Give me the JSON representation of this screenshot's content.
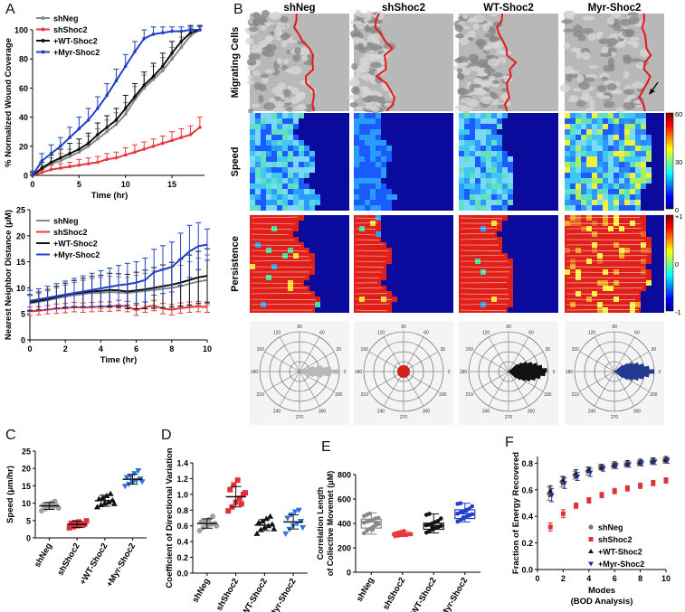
{
  "panel_letters": [
    "A",
    "B",
    "C",
    "D",
    "E",
    "F"
  ],
  "colors": {
    "shNeg": "#888888",
    "shShoc2": "#e8383d",
    "WT": "#111111",
    "Myr": "#2040c8",
    "Myr_box": "#1c3fd0",
    "Myr_tri": "#2f6fd8",
    "shNeg_dots": "#a0a0a0",
    "shShoc2_dots": "#e03038",
    "F_shNeg": "#777777",
    "F_WT": "#111111",
    "F_Myr": "#23318a",
    "rose_shNeg": "#b8b8b8",
    "rose_shShoc2": "#d02020",
    "rose_WT": "#111111",
    "rose_Myr": "#203a90",
    "boundary": "#e8181a"
  },
  "panelB": {
    "columns": [
      "shNeg",
      "shShoc2",
      "WT-Shoc2",
      "Myr-Shoc2"
    ],
    "rows": [
      "Migrating Cells",
      "Speed",
      "Persistence"
    ],
    "speed_colorbar": {
      "ticks": [
        "60",
        "30",
        "0"
      ]
    },
    "persistence_colorbar": {
      "ticks": [
        "+1",
        "0",
        "-1"
      ]
    },
    "rose_labels": [
      "90",
      "60",
      "30",
      "0",
      "330",
      "300",
      "270",
      "240",
      "210",
      "180",
      "150",
      "120"
    ]
  },
  "chart_data": [
    {
      "id": "A_top",
      "type": "line",
      "title": "",
      "xlabel": "Time (hr)",
      "ylabel": "% Normalized Wound Coverage",
      "xlim": [
        0,
        18.5
      ],
      "ylim": [
        0,
        100
      ],
      "xticks": [
        0,
        5,
        10,
        15
      ],
      "yticks": [
        0,
        20,
        40,
        60,
        80,
        100
      ],
      "legend": [
        "shNeg",
        "shShoc2",
        "+WT-Shoc2",
        "+Myr-Shoc2"
      ],
      "x": [
        0,
        1,
        2,
        3,
        4,
        5,
        6,
        7,
        8,
        9,
        10,
        11,
        12,
        13,
        14,
        15,
        16,
        17,
        18
      ],
      "series": [
        {
          "name": "shNeg",
          "values": [
            0,
            4,
            8,
            10,
            13,
            16,
            20,
            25,
            30,
            35,
            42,
            52,
            60,
            66,
            72,
            80,
            88,
            96,
            100
          ],
          "err": [
            2,
            3,
            4,
            5,
            5,
            6,
            7,
            7,
            8,
            8,
            8,
            9,
            9,
            9,
            9,
            8,
            7,
            5,
            3
          ]
        },
        {
          "name": "shShoc2",
          "values": [
            0,
            2,
            4,
            5,
            6,
            7,
            8,
            9,
            11,
            12,
            14,
            16,
            18,
            20,
            22,
            24,
            26,
            28,
            33
          ],
          "err": [
            1,
            2,
            3,
            3,
            3,
            4,
            4,
            4,
            4,
            4,
            5,
            5,
            5,
            5,
            5,
            6,
            6,
            6,
            7
          ]
        },
        {
          "name": "+WT-Shoc2",
          "values": [
            0,
            5,
            9,
            12,
            15,
            18,
            22,
            28,
            33,
            38,
            46,
            54,
            62,
            68,
            75,
            84,
            92,
            98,
            100
          ],
          "err": [
            2,
            4,
            5,
            6,
            7,
            7,
            7,
            8,
            8,
            8,
            9,
            9,
            9,
            9,
            9,
            8,
            7,
            5,
            3
          ]
        },
        {
          "name": "+Myr-Shoc2",
          "values": [
            0,
            10,
            15,
            20,
            26,
            32,
            38,
            46,
            55,
            65,
            75,
            85,
            94,
            97,
            98,
            99,
            99,
            100,
            100
          ],
          "err": [
            3,
            5,
            6,
            6,
            7,
            8,
            8,
            8,
            8,
            8,
            8,
            7,
            6,
            5,
            4,
            3,
            3,
            2,
            2
          ]
        }
      ]
    },
    {
      "id": "A_bottom",
      "type": "line",
      "title": "",
      "xlabel": "Time (hr)",
      "ylabel": "Nearest Neighbor Distance (μM)",
      "xlim": [
        0,
        10
      ],
      "ylim": [
        0,
        25
      ],
      "xticks": [
        0,
        2,
        4,
        6,
        8,
        10
      ],
      "yticks": [
        0,
        5,
        10,
        15,
        20,
        25
      ],
      "legend": [
        "shNeg",
        "shShoc2",
        "+WT-Shoc2",
        "+Myr-Shoc2"
      ],
      "x": [
        0,
        0.5,
        1,
        1.5,
        2,
        2.5,
        3,
        3.5,
        4,
        4.5,
        5,
        5.5,
        6,
        6.5,
        7,
        7.5,
        8,
        8.5,
        9,
        9.5,
        10
      ],
      "series": [
        {
          "name": "shNeg",
          "values": [
            7,
            7.3,
            7.6,
            8,
            8.3,
            8.6,
            8.8,
            9,
            9,
            9.2,
            9.1,
            9,
            9.2,
            9.4,
            9.6,
            9.8,
            10,
            10.3,
            10.8,
            11.2,
            11.5
          ],
          "err": [
            1.5,
            1.6,
            1.8,
            2,
            2.2,
            2.4,
            2.6,
            2.8,
            3,
            3,
            3,
            3,
            3.2,
            3.4,
            3.6,
            3.8,
            4,
            4,
            4.2,
            4.5,
            4.8
          ]
        },
        {
          "name": "shShoc2",
          "values": [
            5.5,
            5.6,
            5.8,
            6,
            6.1,
            6.3,
            6.2,
            6.3,
            6.4,
            6.4,
            6.6,
            6.4,
            5.7,
            6.3,
            6.6,
            6.0,
            5.8,
            6.1,
            6.3,
            6.4,
            6.3
          ],
          "err": [
            0.8,
            0.8,
            0.8,
            0.9,
            0.9,
            0.9,
            0.9,
            0.9,
            0.9,
            0.9,
            1,
            1,
            1,
            1,
            1,
            1,
            1,
            1,
            1,
            1,
            1
          ]
        },
        {
          "name": "+WT-Shoc2",
          "values": [
            7.2,
            7.5,
            7.8,
            8.2,
            8.6,
            8.9,
            9.1,
            9.3,
            9.4,
            9.6,
            9.5,
            9.3,
            9.5,
            9.7,
            10,
            10.3,
            10.6,
            11,
            11.5,
            12,
            12.3
          ],
          "err": [
            1.5,
            1.7,
            1.9,
            2.1,
            2.3,
            2.5,
            2.7,
            2.9,
            3,
            3.2,
            3.2,
            3.3,
            3.5,
            3.7,
            3.9,
            4.1,
            4.3,
            4.5,
            4.8,
            5,
            5.2
          ]
        },
        {
          "name": "+Myr-Shoc2",
          "values": [
            7.5,
            7.8,
            8.1,
            8.4,
            8.7,
            9,
            9.3,
            9.6,
            9.9,
            10.2,
            10.5,
            10.7,
            11,
            11.5,
            13,
            13.5,
            14,
            15.5,
            17,
            18,
            18.3
          ],
          "err": [
            2,
            2,
            2.2,
            2.4,
            2.6,
            2.8,
            3,
            3.2,
            3.4,
            3.6,
            3.8,
            4,
            4,
            4.2,
            4.4,
            4.6,
            4.8,
            5,
            5,
            4.5,
            3
          ]
        }
      ]
    },
    {
      "id": "C",
      "type": "scatter",
      "title": "",
      "xlabel": "",
      "ylabel": "Speed (μm/hr)",
      "ylim": [
        0,
        25
      ],
      "yticks": [
        0,
        5,
        10,
        15,
        20,
        25
      ],
      "categories": [
        "shNeg",
        "shShoc2",
        "+WT-Shoc2",
        "+Myr-Shoc2"
      ],
      "mean": [
        9.2,
        3.9,
        10.7,
        16.9
      ],
      "sd": [
        1.0,
        0.9,
        1.6,
        1.4
      ],
      "points": [
        [
          7.8,
          8.4,
          8.8,
          9.0,
          9.2,
          9.4,
          9.6,
          10.0,
          10.5,
          8.6
        ],
        [
          2.9,
          3.2,
          3.5,
          3.8,
          4.0,
          4.2,
          4.4,
          4.6,
          3.6,
          4.9
        ],
        [
          8.9,
          9.5,
          10.0,
          10.3,
          10.8,
          11.2,
          11.6,
          12.1,
          12.7,
          9.8
        ],
        [
          14.9,
          15.5,
          16.0,
          16.5,
          17.0,
          17.4,
          17.8,
          18.6,
          19.4,
          16.2
        ]
      ]
    },
    {
      "id": "D",
      "type": "scatter",
      "title": "",
      "xlabel": "",
      "ylabel": "Coefficient of Directional Variation",
      "ylim": [
        0,
        1.4
      ],
      "yticks": [
        0.0,
        0.2,
        0.4,
        0.6,
        0.8,
        1.0,
        1.2,
        1.4
      ],
      "categories": [
        "shNeg",
        "shShoc2",
        "+WT-Shoc2",
        "+Myr-Shoc2"
      ],
      "mean": [
        0.63,
        0.97,
        0.61,
        0.65
      ],
      "sd": [
        0.06,
        0.13,
        0.07,
        0.09
      ],
      "points": [
        [
          0.54,
          0.58,
          0.6,
          0.62,
          0.63,
          0.65,
          0.66,
          0.68,
          0.72,
          0.6
        ],
        [
          0.79,
          0.84,
          0.9,
          0.95,
          1.0,
          1.06,
          1.12,
          1.18,
          0.88,
          1.02
        ],
        [
          0.5,
          0.55,
          0.58,
          0.6,
          0.62,
          0.64,
          0.66,
          0.69,
          0.72,
          0.56
        ],
        [
          0.5,
          0.56,
          0.6,
          0.63,
          0.66,
          0.7,
          0.74,
          0.78,
          0.8,
          0.58
        ]
      ]
    },
    {
      "id": "E",
      "type": "box",
      "title": "",
      "xlabel": "",
      "ylabel": "Correlation Length of Collective Movemet (μM)",
      "ylim": [
        0,
        800
      ],
      "yticks": [
        0,
        200,
        400,
        600,
        800
      ],
      "categories": [
        "shNeg",
        "shShoc2",
        "+WT-Shoc2",
        "+Myr-Shoc2"
      ],
      "box": [
        {
          "min": 312,
          "q1": 362,
          "median": 415,
          "q3": 435,
          "max": 485
        },
        {
          "min": 292,
          "q1": 300,
          "median": 312,
          "q3": 322,
          "max": 338
        },
        {
          "min": 322,
          "q1": 352,
          "median": 382,
          "q3": 402,
          "max": 478
        },
        {
          "min": 412,
          "q1": 440,
          "median": 480,
          "q3": 512,
          "max": 565
        }
      ],
      "points": [
        [
          320,
          340,
          355,
          370,
          385,
          395,
          405,
          415,
          420,
          430,
          440,
          445,
          460,
          470,
          480,
          350,
          400
        ],
        [
          295,
          300,
          305,
          310,
          312,
          315,
          318,
          322,
          330,
          338,
          308
        ],
        [
          325,
          335,
          350,
          360,
          370,
          380,
          385,
          390,
          400,
          410,
          420,
          440,
          470,
          478,
          365
        ],
        [
          415,
          430,
          440,
          455,
          465,
          475,
          480,
          490,
          500,
          510,
          520,
          540,
          560,
          565,
          450,
          505
        ]
      ]
    },
    {
      "id": "F",
      "type": "scatter",
      "title": "",
      "xlabel": "Modes\n(BOD Analysis)",
      "ylabel": "Fraction of Energy Recovered",
      "xlim": [
        0,
        10
      ],
      "ylim": [
        0,
        0.85
      ],
      "xticks": [
        0,
        2,
        4,
        6,
        8,
        10
      ],
      "yticks": [
        0.0,
        0.2,
        0.4,
        0.6,
        0.8
      ],
      "legend": [
        "shNeg",
        "shShoc2",
        "+WT-Shoc2",
        "+Myr-Shoc2"
      ],
      "x": [
        1,
        2,
        3,
        4,
        5,
        6,
        7,
        8,
        9,
        10
      ],
      "series": [
        {
          "name": "shNeg",
          "values": [
            0.57,
            0.66,
            0.71,
            0.74,
            0.77,
            0.78,
            0.79,
            0.8,
            0.81,
            0.82
          ],
          "err": [
            0.05,
            0.04,
            0.03,
            0.03,
            0.02,
            0.02,
            0.02,
            0.02,
            0.02,
            0.02
          ]
        },
        {
          "name": "shShoc2",
          "values": [
            0.32,
            0.42,
            0.48,
            0.52,
            0.56,
            0.59,
            0.61,
            0.63,
            0.65,
            0.67
          ],
          "err": [
            0.03,
            0.03,
            0.02,
            0.02,
            0.02,
            0.02,
            0.02,
            0.02,
            0.02,
            0.02
          ]
        },
        {
          "name": "+WT-Shoc2",
          "values": [
            0.59,
            0.67,
            0.72,
            0.75,
            0.77,
            0.79,
            0.8,
            0.81,
            0.82,
            0.83
          ],
          "err": [
            0.04,
            0.03,
            0.03,
            0.02,
            0.02,
            0.02,
            0.02,
            0.02,
            0.02,
            0.02
          ]
        },
        {
          "name": "+Myr-Shoc2",
          "values": [
            0.56,
            0.65,
            0.7,
            0.73,
            0.76,
            0.78,
            0.79,
            0.8,
            0.81,
            0.82
          ],
          "err": [
            0.05,
            0.04,
            0.03,
            0.03,
            0.02,
            0.02,
            0.02,
            0.02,
            0.02,
            0.02
          ]
        }
      ]
    }
  ]
}
